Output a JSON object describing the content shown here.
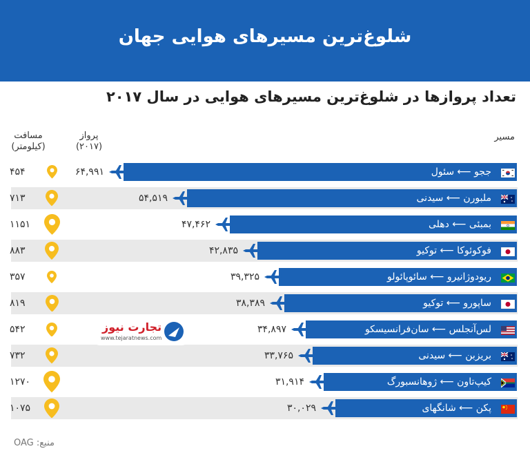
{
  "header": {
    "title": "شلوغ‌ترین مسیرهای هوایی جهان",
    "background": "#1b62b5"
  },
  "chart_data": {
    "type": "bar",
    "title": "تعداد پروازها در شلوغ‌ترین مسیرهای هوایی در سال ۲۰۱۷",
    "columns": {
      "route": "مسیر",
      "flights": "پرواز",
      "flights_sub": "(۲۰۱۷)",
      "distance": "مسافت",
      "distance_sub": "(کیلومتر)"
    },
    "unit": "flights (2017)",
    "rows": [
      {
        "route": "ججو ⟵ سئول",
        "flights": 64991,
        "flights_label": "۶۴,۹۹۱",
        "distance": 454,
        "distance_label": "۴۵۴",
        "flag": "south-korea-flag"
      },
      {
        "route": "ملبورن ⟵ سیدنی",
        "flights": 54519,
        "flights_label": "۵۴,۵۱۹",
        "distance": 713,
        "distance_label": "۷۱۳",
        "flag": "australia-flag"
      },
      {
        "route": "بمبئی ⟵ دهلی",
        "flights": 47462,
        "flights_label": "۴۷,۴۶۲",
        "distance": 1151,
        "distance_label": "۱۱۵۱",
        "flag": "india-flag"
      },
      {
        "route": "فوکوئوکا ⟵ توکیو",
        "flights": 42835,
        "flights_label": "۴۲,۸۳۵",
        "distance": 883,
        "distance_label": "۸۸۳",
        "flag": "japan-flag"
      },
      {
        "route": "ریودوژانیرو ⟵ سائوپائولو",
        "flights": 39325,
        "flights_label": "۳۹,۳۲۵",
        "distance": 357,
        "distance_label": "۳۵۷",
        "flag": "brazil-flag"
      },
      {
        "route": "ساپورو ⟵ توکیو",
        "flights": 38389,
        "flights_label": "۳۸,۳۸۹",
        "distance": 819,
        "distance_label": "۸۱۹",
        "flag": "japan-flag"
      },
      {
        "route": "لس‌آنجلس ⟵ سان‌فرانسیسکو",
        "flights": 34897,
        "flights_label": "۳۴,۸۹۷",
        "distance": 542,
        "distance_label": "۵۴۲",
        "flag": "usa-flag"
      },
      {
        "route": "بریزبن ⟵ سیدنی",
        "flights": 33765,
        "flights_label": "۳۳,۷۶۵",
        "distance": 732,
        "distance_label": "۷۳۲",
        "flag": "australia-flag"
      },
      {
        "route": "کیپ‌تاون ⟵ ژوهانسبورگ",
        "flights": 31914,
        "flights_label": "۳۱,۹۱۴",
        "distance": 1270,
        "distance_label": "۱۲۷۰",
        "flag": "south-africa-flag"
      },
      {
        "route": "پکن ⟵ شانگهای",
        "flights": 30029,
        "flights_label": "۳۰,۰۲۹",
        "distance": 1075,
        "distance_label": "۱۰۷۵",
        "flag": "china-flag"
      }
    ],
    "bar_color": "#1b62b5",
    "pin_color": "#f7bd1f"
  },
  "logo": {
    "name": "تجارت نیوز",
    "url": "www.tejaratnews.com"
  },
  "source": "منبع: OAG"
}
